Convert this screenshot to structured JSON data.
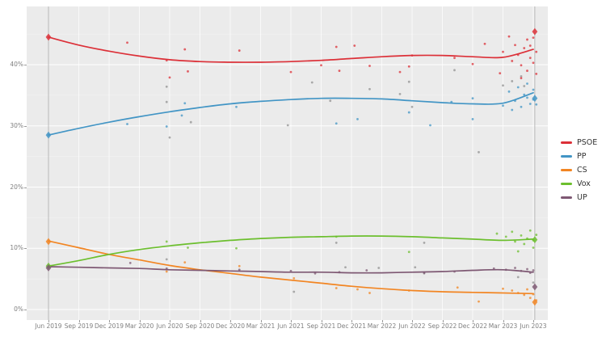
{
  "chart_data": {
    "type": "scatter",
    "title": "",
    "x_axis": {
      "tick_labels": [
        "Jun 2019",
        "Sep 2019",
        "Dec 2019",
        "Mar 2020",
        "Jun 2020",
        "Sep 2020",
        "Dec 2020",
        "Mar 2021",
        "Jun 2021",
        "Sep 2021",
        "Dec 2021",
        "Mar 2022",
        "Jun 2022",
        "Sep 2022",
        "Dec 2022",
        "Mar 2023",
        "Jun 2023"
      ]
    },
    "y_axis": {
      "tick_labels": [
        "0%",
        "10%",
        "20%",
        "30%",
        "40%"
      ],
      "tick_values": [
        0,
        10,
        20,
        30,
        40
      ],
      "minor_values": [
        5,
        15,
        25,
        35,
        45
      ],
      "ylim": [
        -1.5,
        49.5
      ]
    },
    "grid": {
      "horizontal": true,
      "vertical_every_quarter": true
    },
    "legend": {
      "position": "right",
      "entries": [
        "PSOE",
        "PP",
        "CS",
        "Vox",
        "UP"
      ]
    },
    "colors": {
      "panel_bg": "#ebebeb",
      "grid": "#ffffff",
      "election_line": "#b9b9b9",
      "axis_text": "#7f7f7f",
      "legend_text": "#333333",
      "gray_points": "#8c8c8c"
    },
    "series": [
      {
        "name": "PSOE",
        "color": "#dc3038",
        "trend": [
          44.5,
          43.2,
          42.2,
          41.4,
          40.8,
          40.5,
          40.4,
          40.4,
          40.5,
          40.7,
          41.0,
          41.3,
          41.5,
          41.5,
          41.3,
          41.2,
          42.5
        ],
        "points": [
          [
            2.6,
            43.6
          ],
          [
            3.9,
            40.7
          ],
          [
            4.0,
            37.9
          ],
          [
            4.5,
            42.5
          ],
          [
            4.6,
            38.9
          ],
          [
            6.3,
            42.3
          ],
          [
            8.0,
            38.8
          ],
          [
            9.0,
            39.9
          ],
          [
            9.5,
            42.9
          ],
          [
            9.6,
            39.0
          ],
          [
            10.1,
            43.1
          ],
          [
            10.6,
            39.8
          ],
          [
            11.6,
            38.8
          ],
          [
            11.9,
            39.7
          ],
          [
            12.0,
            41.5
          ],
          [
            13.4,
            41.1
          ],
          [
            14.0,
            40.1
          ],
          [
            14.4,
            43.4
          ],
          [
            14.9,
            38.6
          ],
          [
            15.0,
            42.1
          ],
          [
            15.2,
            44.6
          ],
          [
            15.3,
            40.6
          ],
          [
            15.4,
            43.2
          ],
          [
            15.5,
            41.6
          ],
          [
            15.6,
            39.9
          ],
          [
            15.6,
            37.8
          ],
          [
            15.7,
            42.7
          ],
          [
            15.8,
            44.1
          ],
          [
            15.8,
            39.0
          ],
          [
            15.9,
            41.1
          ],
          [
            15.9,
            43.1
          ],
          [
            16.0,
            40.3
          ],
          [
            16.0,
            44.4
          ],
          [
            16.1,
            42.1
          ],
          [
            16.1,
            38.5
          ]
        ]
      },
      {
        "name": "PP",
        "color": "#4295c5",
        "trend": [
          28.5,
          29.6,
          30.6,
          31.5,
          32.3,
          33.0,
          33.6,
          34.0,
          34.3,
          34.5,
          34.5,
          34.4,
          34.1,
          33.8,
          33.6,
          33.7,
          35.4
        ],
        "points": [
          [
            2.6,
            30.3
          ],
          [
            3.9,
            29.9
          ],
          [
            4.4,
            31.7
          ],
          [
            4.5,
            33.7
          ],
          [
            6.2,
            33.1
          ],
          [
            9.5,
            30.4
          ],
          [
            10.2,
            31.1
          ],
          [
            11.9,
            32.2
          ],
          [
            12.6,
            30.1
          ],
          [
            13.3,
            33.9
          ],
          [
            14.0,
            34.5
          ],
          [
            14.0,
            31.1
          ],
          [
            15.0,
            33.3
          ],
          [
            15.2,
            35.6
          ],
          [
            15.3,
            32.6
          ],
          [
            15.4,
            34.1
          ],
          [
            15.5,
            36.3
          ],
          [
            15.6,
            33.1
          ],
          [
            15.7,
            35.1
          ],
          [
            15.8,
            36.9
          ],
          [
            15.8,
            34.6
          ],
          [
            15.9,
            33.6
          ],
          [
            16.0,
            35.9
          ],
          [
            16.0,
            34.3
          ],
          [
            16.1,
            33.5
          ]
        ]
      },
      {
        "name": "CS",
        "color": "#f28522",
        "trend": [
          11.2,
          10.1,
          9.0,
          8.1,
          7.2,
          6.5,
          5.9,
          5.3,
          4.8,
          4.3,
          3.8,
          3.4,
          3.1,
          2.9,
          2.8,
          2.7,
          2.6
        ],
        "points": [
          [
            3.9,
            6.2
          ],
          [
            4.5,
            7.7
          ],
          [
            6.3,
            7.1
          ],
          [
            8.1,
            5.1
          ],
          [
            9.5,
            3.5
          ],
          [
            10.2,
            3.3
          ],
          [
            10.6,
            2.7
          ],
          [
            11.9,
            3.1
          ],
          [
            13.5,
            3.6
          ],
          [
            14.2,
            1.3
          ],
          [
            15.0,
            3.4
          ],
          [
            15.3,
            3.1
          ],
          [
            15.5,
            2.7
          ],
          [
            15.7,
            2.4
          ],
          [
            15.8,
            3.3
          ],
          [
            15.9,
            1.9
          ],
          [
            16.0,
            2.5
          ],
          [
            16.1,
            1.5
          ]
        ]
      },
      {
        "name": "Vox",
        "color": "#6cbf2e",
        "trend": [
          7.1,
          8.0,
          9.0,
          9.8,
          10.4,
          10.9,
          11.3,
          11.6,
          11.8,
          11.9,
          12.0,
          12.0,
          11.9,
          11.7,
          11.5,
          11.3,
          11.5
        ],
        "points": [
          [
            3.9,
            11.1
          ],
          [
            4.6,
            10.1
          ],
          [
            6.2,
            10.0
          ],
          [
            9.5,
            11.9
          ],
          [
            11.9,
            9.4
          ],
          [
            14.8,
            12.4
          ],
          [
            15.1,
            11.9
          ],
          [
            15.3,
            12.7
          ],
          [
            15.4,
            11.1
          ],
          [
            15.5,
            9.5
          ],
          [
            15.6,
            12.1
          ],
          [
            15.7,
            10.7
          ],
          [
            15.8,
            11.6
          ],
          [
            15.9,
            12.9
          ],
          [
            16.0,
            11.3
          ],
          [
            16.0,
            10.1
          ],
          [
            16.1,
            12.2
          ]
        ]
      },
      {
        "name": "UP",
        "color": "#7e5873",
        "trend": [
          7.0,
          6.9,
          6.8,
          6.7,
          6.5,
          6.4,
          6.3,
          6.2,
          6.1,
          6.1,
          6.0,
          6.0,
          6.1,
          6.2,
          6.4,
          6.5,
          6.1
        ],
        "points": [
          [
            2.7,
            7.6
          ],
          [
            3.9,
            6.7
          ],
          [
            6.3,
            6.5
          ],
          [
            8.0,
            6.3
          ],
          [
            8.8,
            5.9
          ],
          [
            9.6,
            6.1
          ],
          [
            10.5,
            6.4
          ],
          [
            12.4,
            6.0
          ],
          [
            13.4,
            6.2
          ],
          [
            14.7,
            6.7
          ],
          [
            15.1,
            6.5
          ],
          [
            15.4,
            6.8
          ],
          [
            15.6,
            6.3
          ],
          [
            15.8,
            6.6
          ],
          [
            15.9,
            6.0
          ],
          [
            16.0,
            6.4
          ]
        ]
      }
    ],
    "gray_points": [
      [
        3.9,
        36.4
      ],
      [
        3.9,
        33.9
      ],
      [
        4.0,
        28.1
      ],
      [
        4.7,
        30.6
      ],
      [
        7.9,
        30.1
      ],
      [
        8.7,
        37.1
      ],
      [
        9.3,
        34.1
      ],
      [
        10.6,
        36.0
      ],
      [
        11.6,
        35.2
      ],
      [
        11.9,
        37.2
      ],
      [
        12.0,
        33.1
      ],
      [
        13.4,
        39.1
      ],
      [
        14.2,
        25.7
      ],
      [
        15.0,
        36.6
      ],
      [
        15.3,
        37.3
      ],
      [
        15.6,
        38.1
      ],
      [
        15.7,
        36.5
      ],
      [
        3.9,
        8.2
      ],
      [
        9.5,
        10.9
      ],
      [
        12.4,
        10.9
      ],
      [
        9.8,
        6.9
      ],
      [
        10.9,
        6.8
      ],
      [
        12.1,
        6.9
      ],
      [
        12.4,
        5.9
      ],
      [
        15.5,
        5.3
      ],
      [
        16.0,
        4.4
      ],
      [
        8.1,
        2.9
      ]
    ],
    "election_markers": [
      {
        "x_label": "Jun 2019",
        "q": 0,
        "values": {
          "PSOE": 44.5,
          "PP": 28.5,
          "CS": 11.1,
          "Vox": 7.1,
          "UP": 6.8
        }
      },
      {
        "x_label": "Jun 2023",
        "q": 16.05,
        "values": {
          "PSOE": 45.4,
          "PP": 34.5,
          "Vox": 11.4,
          "UP": 3.7,
          "CS": 1.2
        }
      }
    ]
  }
}
